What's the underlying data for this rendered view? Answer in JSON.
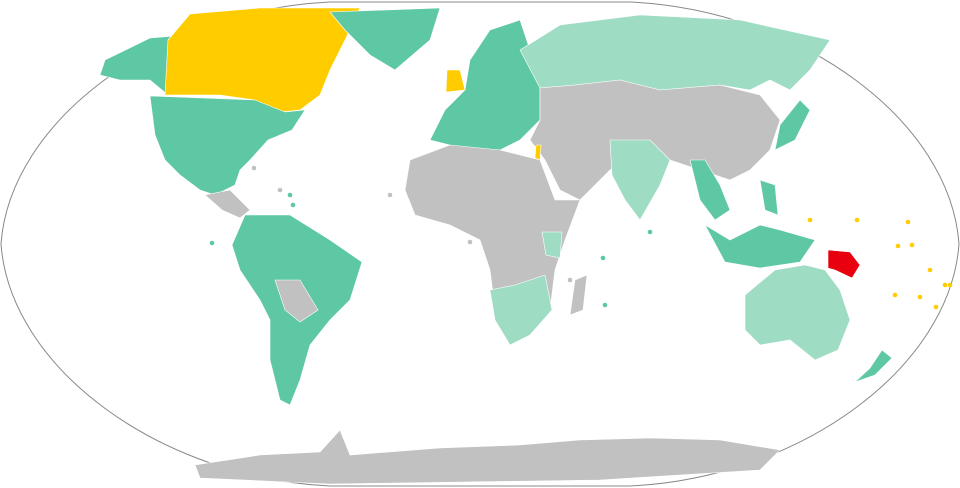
{
  "map": {
    "projection": "robinson",
    "colors": {
      "dark_green": "#5ec7a3",
      "light_green": "#9fdcc4",
      "gray": "#c1c1c1",
      "yellow": "#ffcc00",
      "red": "#e8000e",
      "ocean": "#ffffff",
      "border": "#ffffff",
      "frame": "#888888"
    },
    "regions": [
      {
        "name": "north-america-usa-mexico",
        "color": "dark_green"
      },
      {
        "name": "alaska",
        "color": "dark_green"
      },
      {
        "name": "canada",
        "color": "yellow"
      },
      {
        "name": "greenland",
        "color": "dark_green"
      },
      {
        "name": "central-america",
        "color": "gray"
      },
      {
        "name": "south-america",
        "color": "dark_green"
      },
      {
        "name": "bolivia-paraguay",
        "color": "gray"
      },
      {
        "name": "europe",
        "color": "dark_green"
      },
      {
        "name": "united-kingdom",
        "color": "yellow"
      },
      {
        "name": "russia",
        "color": "light_green"
      },
      {
        "name": "africa",
        "color": "gray"
      },
      {
        "name": "southern-africa",
        "color": "light_green"
      },
      {
        "name": "kenya",
        "color": "light_green"
      },
      {
        "name": "middle-east-asia",
        "color": "gray"
      },
      {
        "name": "israel",
        "color": "yellow"
      },
      {
        "name": "india",
        "color": "light_green"
      },
      {
        "name": "southeast-asia",
        "color": "dark_green"
      },
      {
        "name": "japan",
        "color": "dark_green"
      },
      {
        "name": "indonesia",
        "color": "dark_green"
      },
      {
        "name": "papua-new-guinea",
        "color": "red"
      },
      {
        "name": "australia",
        "color": "light_green"
      },
      {
        "name": "new-zealand",
        "color": "dark_green"
      },
      {
        "name": "madagascar",
        "color": "gray"
      },
      {
        "name": "antarctica",
        "color": "gray"
      },
      {
        "name": "pacific-islands",
        "color": "yellow"
      }
    ]
  }
}
